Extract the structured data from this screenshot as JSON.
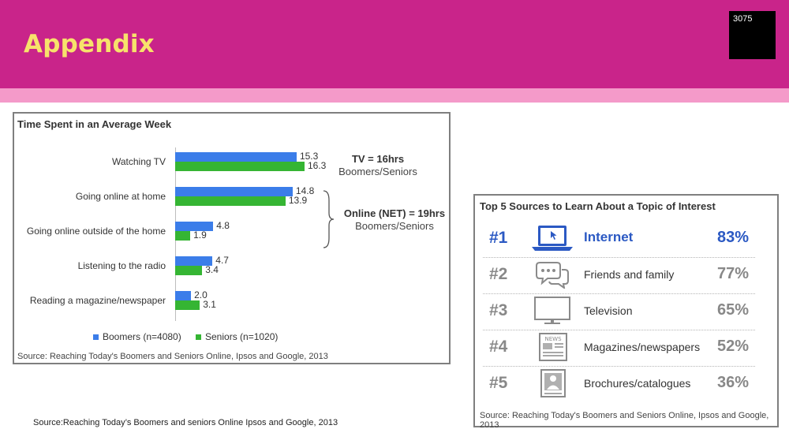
{
  "header": {
    "title": "Appendix",
    "slide_number": "3075"
  },
  "chart_data": [
    {
      "type": "bar",
      "orientation": "horizontal",
      "title": "Time Spent in an Average Week",
      "categories": [
        "Watching TV",
        "Going online at home",
        "Going online outside of the home",
        "Listening to the radio",
        "Reading a magazine/newspaper"
      ],
      "series": [
        {
          "name": "Boomers (n=4080)",
          "color": "#3b7de9",
          "values": [
            15.3,
            14.8,
            4.8,
            4.7,
            2.0
          ],
          "labels": [
            "15.3",
            "14.8",
            "4.8",
            "4.7",
            "2.0"
          ]
        },
        {
          "name": "Seniors (n=1020)",
          "color": "#35b533",
          "values": [
            16.3,
            13.9,
            1.9,
            3.4,
            3.1
          ],
          "labels": [
            "16.3",
            "13.9",
            "1.9",
            "3.4",
            "3.1"
          ]
        }
      ],
      "xlim": [
        0,
        16.3
      ],
      "legend": "bottom",
      "annotations": {
        "tv_title": "TV = 16hrs",
        "tv_sub": "Boomers/Seniors",
        "online_title": "Online (NET) = 19hrs",
        "online_sub": "Boomers/Seniors"
      },
      "source": "Source: Reaching Today's Boomers and Seniors Online, Ipsos and Google, 2013"
    },
    {
      "type": "table",
      "title": "Top 5 Sources to Learn About a Topic of Interest",
      "rows": [
        {
          "rank": "#1",
          "source": "Internet",
          "percent": "83%",
          "icon": "laptop-icon",
          "highlight": true
        },
        {
          "rank": "#2",
          "source": "Friends and family",
          "percent": "77%",
          "icon": "speech-bubbles-icon",
          "highlight": false
        },
        {
          "rank": "#3",
          "source": "Television",
          "percent": "65%",
          "icon": "monitor-icon",
          "highlight": false
        },
        {
          "rank": "#4",
          "source": "Magazines/newspapers",
          "percent": "52%",
          "icon": "newspaper-icon",
          "highlight": false
        },
        {
          "rank": "#5",
          "source": "Brochures/catalogues",
          "percent": "36%",
          "icon": "brochure-icon",
          "highlight": false
        }
      ],
      "source": "Source: Reaching Today's Boomers and Seniors Online, Ipsos and Google, 2013"
    }
  ],
  "footer": {
    "source": "Source:Reaching Today’s Boomers and seniors Online Ipsos and Google, 2013"
  },
  "icon_labels": {
    "news": "NEWS"
  }
}
